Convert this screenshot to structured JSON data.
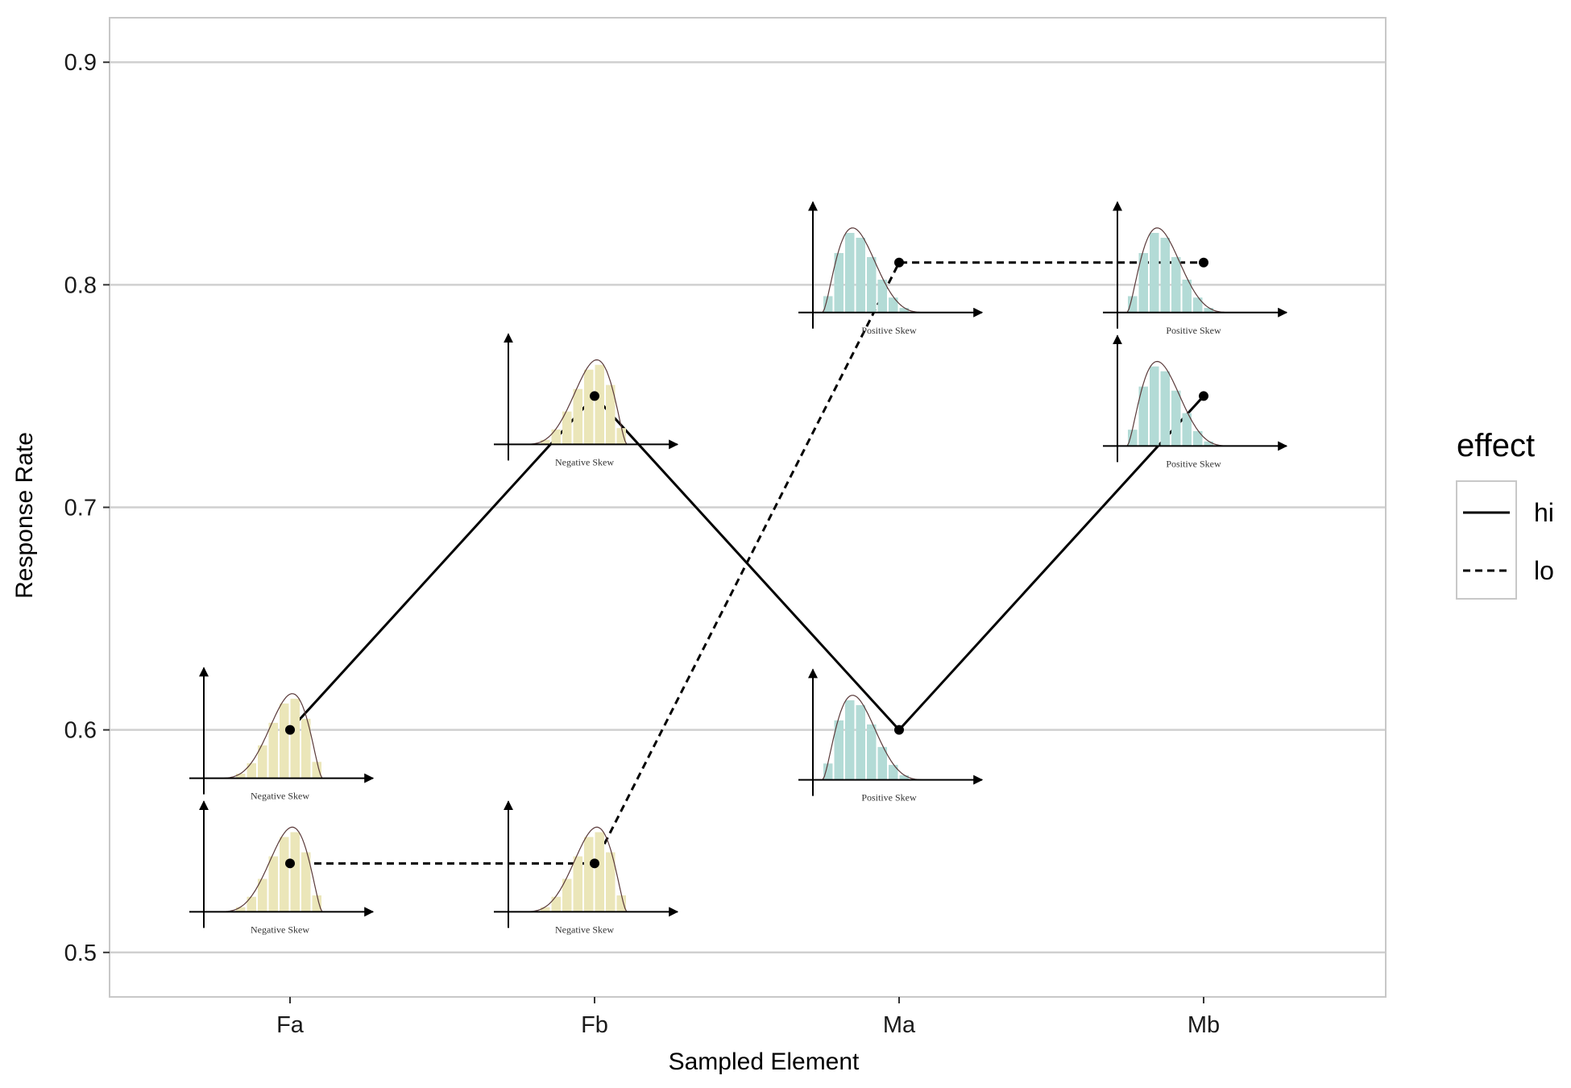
{
  "chart_data": {
    "type": "line",
    "xlabel": "Sampled Element",
    "ylabel": "Response Rate",
    "categories": [
      "Fa",
      "Fb",
      "Ma",
      "Mb"
    ],
    "ylim": [
      0.48,
      0.92
    ],
    "yticks": [
      "0.5",
      "0.6",
      "0.7",
      "0.8",
      "0.9"
    ],
    "grid": true,
    "legend": {
      "title": "effect",
      "placement": "right",
      "entries": [
        {
          "label": "hi",
          "linetype": "solid"
        },
        {
          "label": "lo",
          "linetype": "dashed"
        }
      ]
    },
    "series": [
      {
        "name": "hi",
        "linetype": "solid",
        "values": [
          0.6,
          0.75,
          0.6,
          0.75
        ]
      },
      {
        "name": "lo",
        "linetype": "dashed",
        "values": [
          0.54,
          0.54,
          0.81,
          0.81
        ]
      }
    ],
    "annotations": [
      {
        "x": "Fa",
        "series": "hi",
        "caption": "Negative Skew",
        "skew": "negative",
        "color": "#ebe6b9"
      },
      {
        "x": "Fa",
        "series": "lo",
        "caption": "Negative Skew",
        "skew": "negative",
        "color": "#ebe6b9"
      },
      {
        "x": "Fb",
        "series": "hi",
        "caption": "Negative Skew",
        "skew": "negative",
        "color": "#ebe6b9"
      },
      {
        "x": "Fb",
        "series": "lo",
        "caption": "Negative Skew",
        "skew": "negative",
        "color": "#ebe6b9"
      },
      {
        "x": "Ma",
        "series": "hi",
        "caption": "Positive Skew",
        "skew": "positive",
        "color": "#b3dbd6"
      },
      {
        "x": "Ma",
        "series": "lo",
        "caption": "Positive Skew",
        "skew": "positive",
        "color": "#b3dbd6"
      },
      {
        "x": "Mb",
        "series": "hi",
        "caption": "Positive Skew",
        "skew": "positive",
        "color": "#b3dbd6"
      },
      {
        "x": "Mb",
        "series": "lo",
        "caption": "Positive Skew",
        "skew": "positive",
        "color": "#b3dbd6"
      }
    ],
    "colors": {
      "panel_border": "#c8c8c8",
      "grid": "#d0d0d0",
      "line": "#000000"
    }
  }
}
